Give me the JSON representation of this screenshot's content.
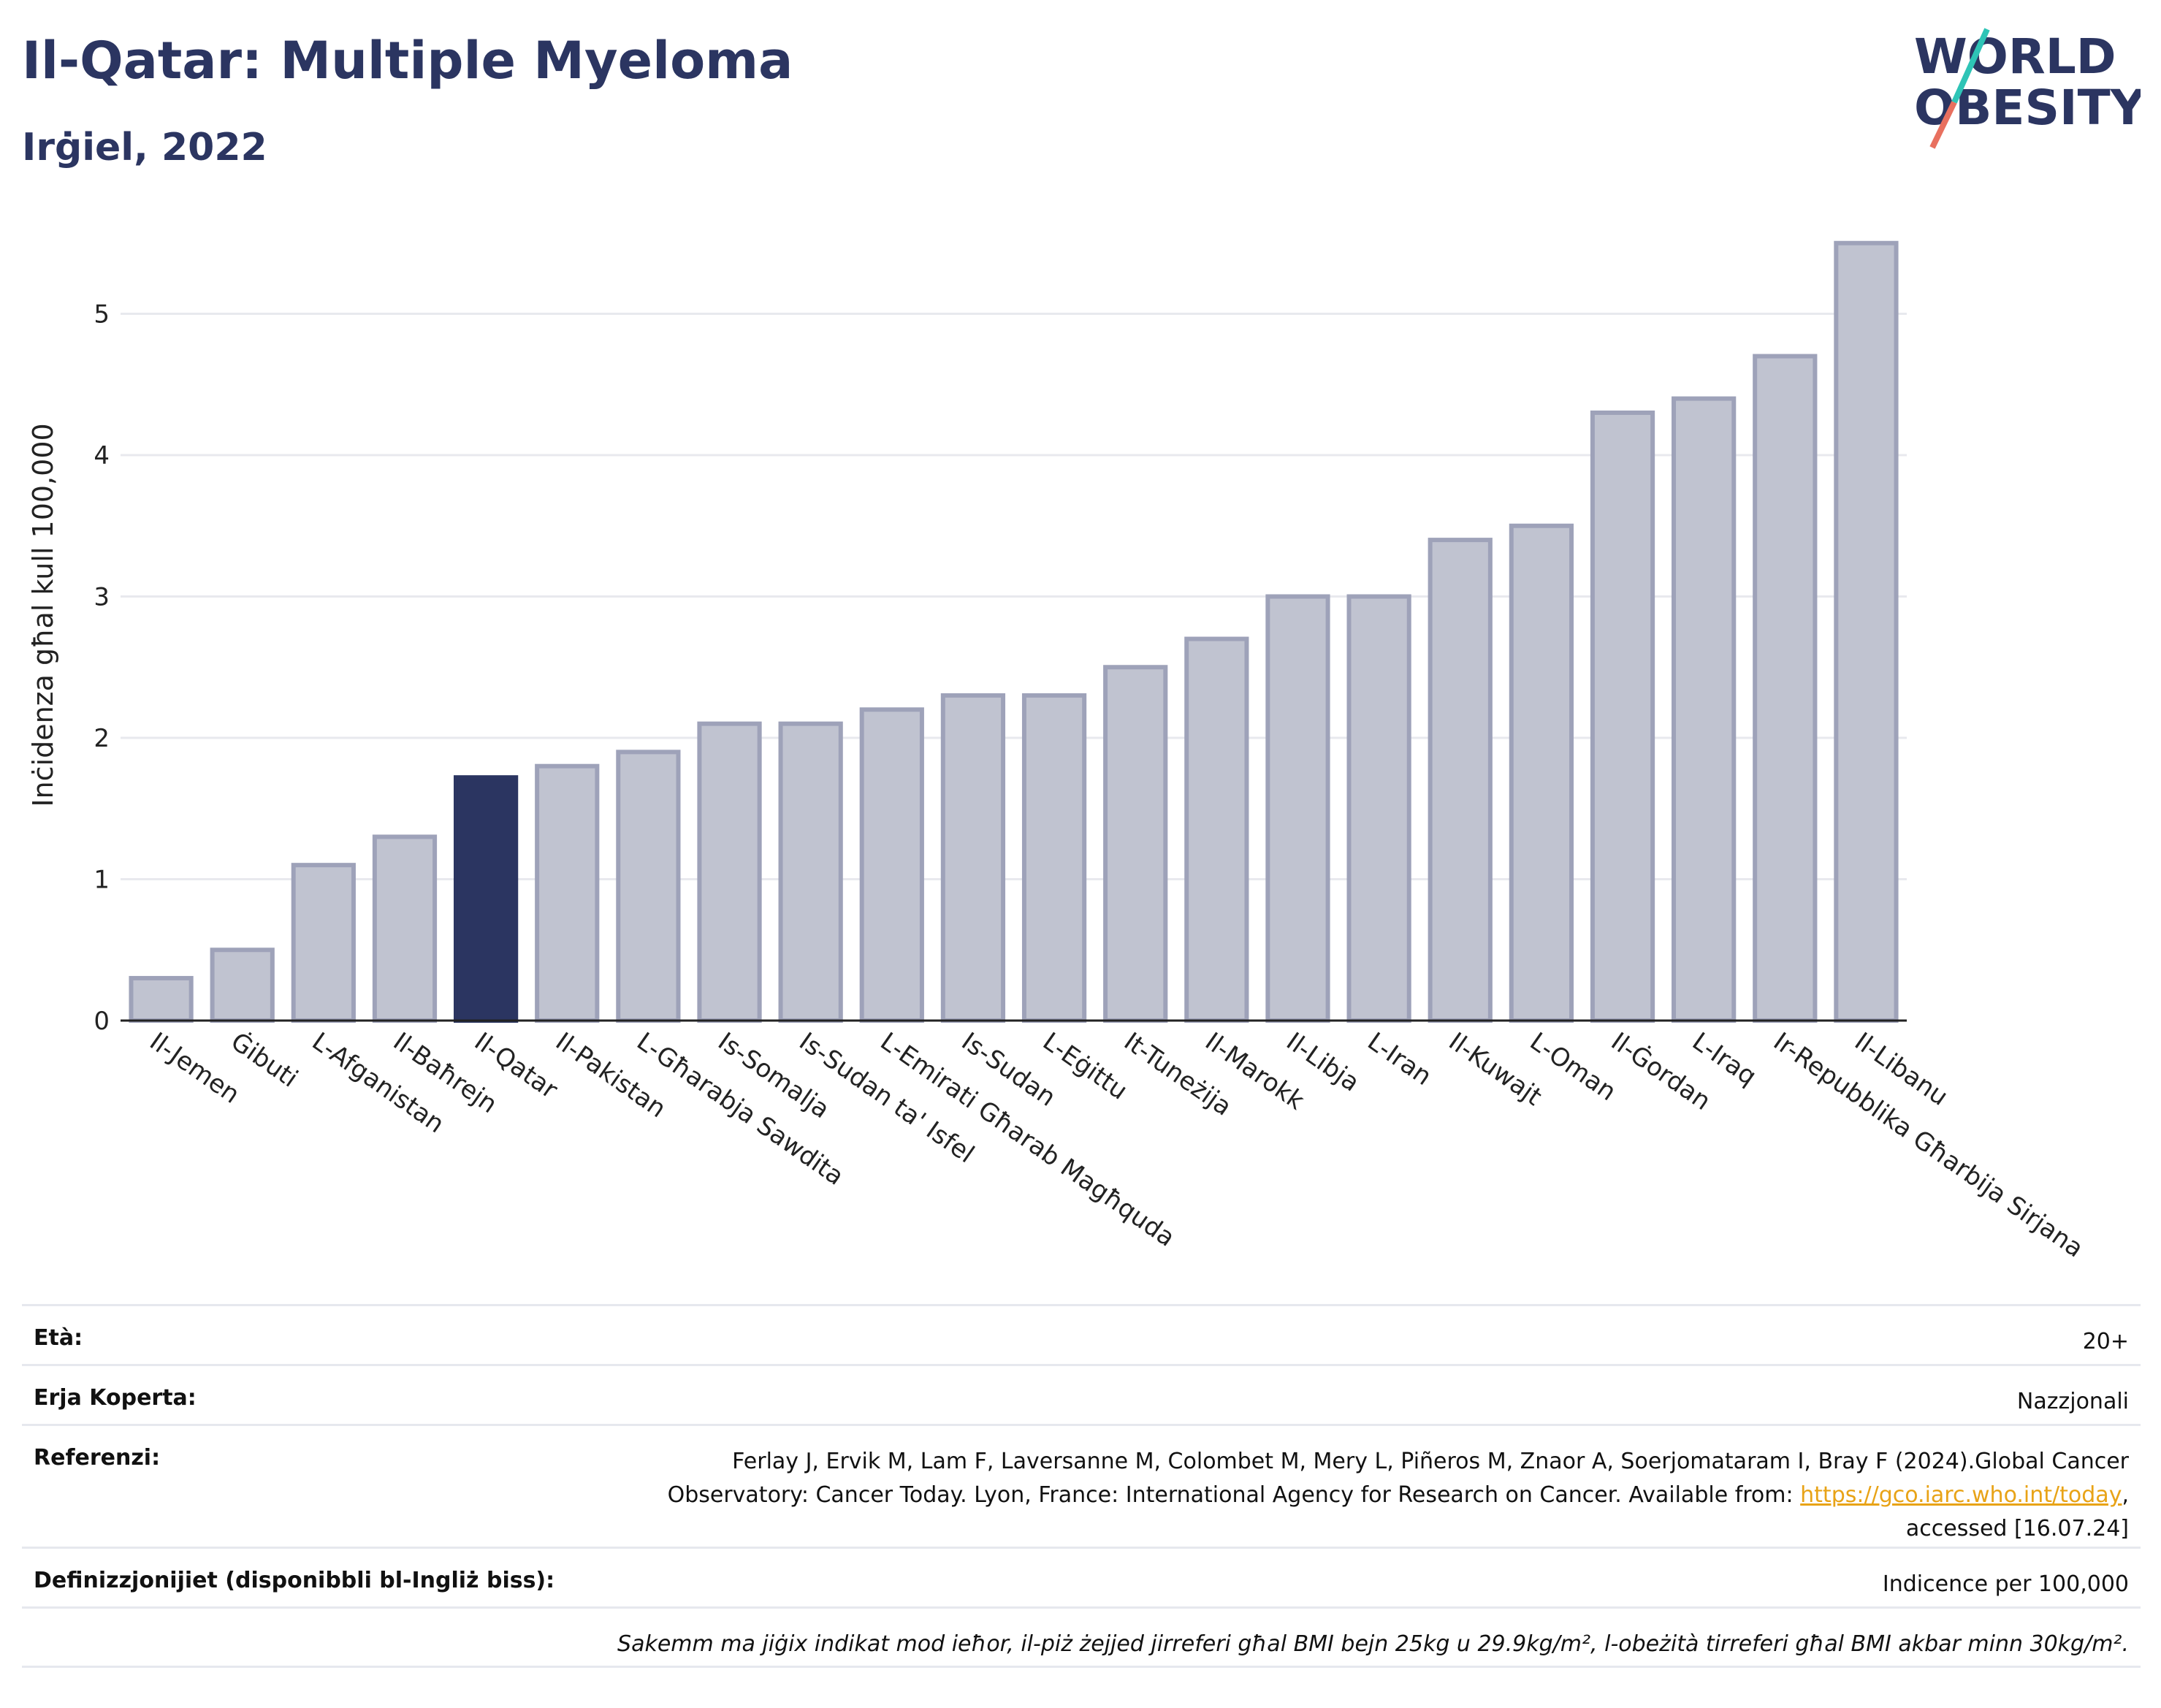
{
  "header": {
    "title": "Il-Qatar: Multiple Myeloma",
    "subtitle": "Irġiel, 2022"
  },
  "logo": {
    "line1": "WORLD",
    "line2": "OBESITY"
  },
  "colors": {
    "highlight": "#2b3561",
    "bar": "#c0c3d0",
    "bar_edge": "#9ea2b9",
    "grid": "#e8e9ee",
    "link": "#e8a317"
  },
  "chart_data": {
    "type": "bar",
    "ylabel": "Inċidenza għal kull 100,000",
    "xlabel": "",
    "ylim": [
      0,
      5.6
    ],
    "yticks": [
      0,
      1,
      2,
      3,
      4,
      5
    ],
    "grid": true,
    "highlight": "Il-Qatar",
    "categories": [
      "Il-Jemen",
      "Ġibuti",
      "L-Afganistan",
      "Il-Baħrejn",
      "Il-Qatar",
      "Il-Pakistan",
      "L-Għarabja Sawdita",
      "Is-Somalja",
      "Is-Sudan ta' Isfel",
      "L-Emirati Għarab Magħquda",
      "Is-Sudan",
      "L-Eġittu",
      "It-Tuneżija",
      "Il-Marokk",
      "Il-Libja",
      "L-Iran",
      "Il-Kuwajt",
      "L-Oman",
      "Il-Ġordan",
      "L-Iraq",
      "Ir-Repubblika Għarbija Sirjana",
      "Il-Libanu"
    ],
    "values": [
      0.3,
      0.5,
      1.1,
      1.3,
      1.72,
      1.8,
      1.9,
      2.1,
      2.1,
      2.2,
      2.3,
      2.3,
      2.5,
      2.7,
      3.0,
      3.0,
      3.4,
      3.5,
      4.3,
      4.4,
      4.7,
      5.5
    ]
  },
  "meta": {
    "age_label": "Età:",
    "age_value": "20+",
    "area_label": "Erja Koperta:",
    "area_value": "Nazzjonali",
    "ref_label": "Referenzi:",
    "ref_text_1": "Ferlay J, Ervik M, Lam F, Laversanne M, Colombet M, Mery L, Piñeros M, Znaor A, Soerjomataram I, Bray F (2024).Global Cancer",
    "ref_text_2": "Observatory: Cancer Today. Lyon, France: International Agency for Research on Cancer. Available from: ",
    "ref_link": "https://gco.iarc.who.int/today",
    "ref_text_3": ",",
    "ref_text_4": "accessed [16.07.24]",
    "def_label": "Definizzjonijiet (disponibbli bl-Ingliż biss):",
    "def_value": "Indicence per 100,000",
    "note": "Sakemm ma jiġix indikat mod ieħor, il-piż żejjed jirreferi għal BMI bejn 25kg u 29.9kg/m², l-obeżità tirreferi għal BMI akbar minn 30kg/m²."
  }
}
